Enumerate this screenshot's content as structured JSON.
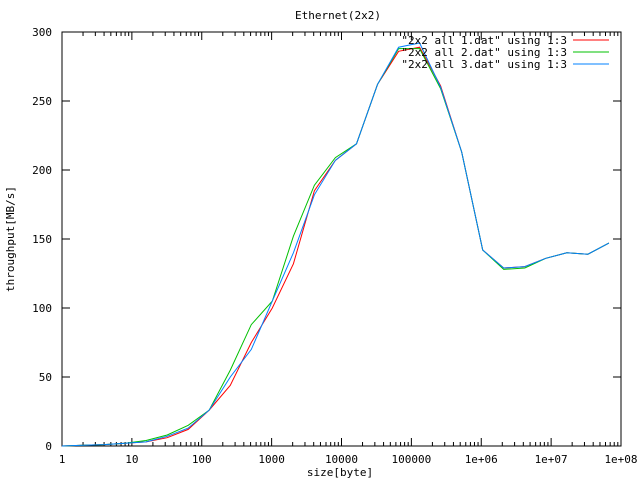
{
  "chart_data": {
    "type": "line",
    "title": "Ethernet(2x2)",
    "xlabel": "size[byte]",
    "ylabel": "throughput[MB/s]",
    "xscale": "log",
    "xlim": [
      1,
      100000000
    ],
    "ylim": [
      0,
      300
    ],
    "grid": false,
    "legend_position": "top-right",
    "x_ticks": [
      {
        "value": 1,
        "label": "1"
      },
      {
        "value": 10,
        "label": "10"
      },
      {
        "value": 100,
        "label": "100"
      },
      {
        "value": 1000,
        "label": "1000"
      },
      {
        "value": 10000,
        "label": "10000"
      },
      {
        "value": 100000,
        "label": "100000"
      },
      {
        "value": 1000000,
        "label": "1e+06"
      },
      {
        "value": 10000000,
        "label": "1e+07"
      },
      {
        "value": 100000000,
        "label": "1e+08"
      }
    ],
    "y_ticks": [
      {
        "value": 0,
        "label": "0"
      },
      {
        "value": 50,
        "label": "50"
      },
      {
        "value": 100,
        "label": "100"
      },
      {
        "value": 150,
        "label": "150"
      },
      {
        "value": 200,
        "label": "200"
      },
      {
        "value": 250,
        "label": "250"
      },
      {
        "value": 300,
        "label": "300"
      }
    ],
    "series": [
      {
        "name": "\"2x2 all 1.dat\" using 1:3",
        "color": "#ff0000",
        "points": [
          [
            1,
            0
          ],
          [
            2,
            0.5
          ],
          [
            4,
            1
          ],
          [
            8,
            2
          ],
          [
            16,
            3
          ],
          [
            32,
            6
          ],
          [
            64,
            12
          ],
          [
            128,
            26
          ],
          [
            256,
            44
          ],
          [
            512,
            75
          ],
          [
            1024,
            100
          ],
          [
            2048,
            132
          ],
          [
            4096,
            185
          ],
          [
            8192,
            207
          ],
          [
            16384,
            219
          ],
          [
            32768,
            262
          ],
          [
            65536,
            286
          ],
          [
            131072,
            289
          ],
          [
            262144,
            261
          ],
          [
            524288,
            213
          ],
          [
            1048576,
            142
          ],
          [
            2097152,
            129
          ],
          [
            4194304,
            130
          ],
          [
            8388608,
            136
          ],
          [
            16777216,
            140
          ],
          [
            33554432,
            139
          ],
          [
            67108864,
            147
          ]
        ]
      },
      {
        "name": "\"2x2 all 2.dat\" using 1:3",
        "color": "#00c000",
        "points": [
          [
            1,
            0
          ],
          [
            2,
            0.5
          ],
          [
            4,
            1
          ],
          [
            8,
            2
          ],
          [
            16,
            4
          ],
          [
            32,
            8
          ],
          [
            64,
            15
          ],
          [
            128,
            26
          ],
          [
            256,
            55
          ],
          [
            512,
            88
          ],
          [
            1024,
            105
          ],
          [
            2048,
            152
          ],
          [
            4096,
            189
          ],
          [
            8192,
            209
          ],
          [
            16384,
            219
          ],
          [
            32768,
            262
          ],
          [
            65536,
            288
          ],
          [
            131072,
            288
          ],
          [
            262144,
            259
          ],
          [
            524288,
            213
          ],
          [
            1048576,
            142
          ],
          [
            2097152,
            128
          ],
          [
            4194304,
            129
          ],
          [
            8388608,
            136
          ],
          [
            16777216,
            140
          ],
          [
            33554432,
            139
          ],
          [
            67108864,
            147
          ]
        ]
      },
      {
        "name": "\"2x2 all 3.dat\" using 1:3",
        "color": "#0080ff",
        "points": [
          [
            1,
            0
          ],
          [
            2,
            0.5
          ],
          [
            4,
            1
          ],
          [
            8,
            2
          ],
          [
            16,
            3
          ],
          [
            32,
            7
          ],
          [
            64,
            13
          ],
          [
            128,
            26
          ],
          [
            256,
            50
          ],
          [
            512,
            70
          ],
          [
            1024,
            105
          ],
          [
            2048,
            140
          ],
          [
            4096,
            182
          ],
          [
            8192,
            207
          ],
          [
            16384,
            219
          ],
          [
            32768,
            262
          ],
          [
            65536,
            289
          ],
          [
            131072,
            292
          ],
          [
            262144,
            260
          ],
          [
            524288,
            213
          ],
          [
            1048576,
            142
          ],
          [
            2097152,
            129
          ],
          [
            4194304,
            130
          ],
          [
            8388608,
            136
          ],
          [
            16777216,
            140
          ],
          [
            33554432,
            139
          ],
          [
            67108864,
            147
          ]
        ]
      }
    ]
  }
}
